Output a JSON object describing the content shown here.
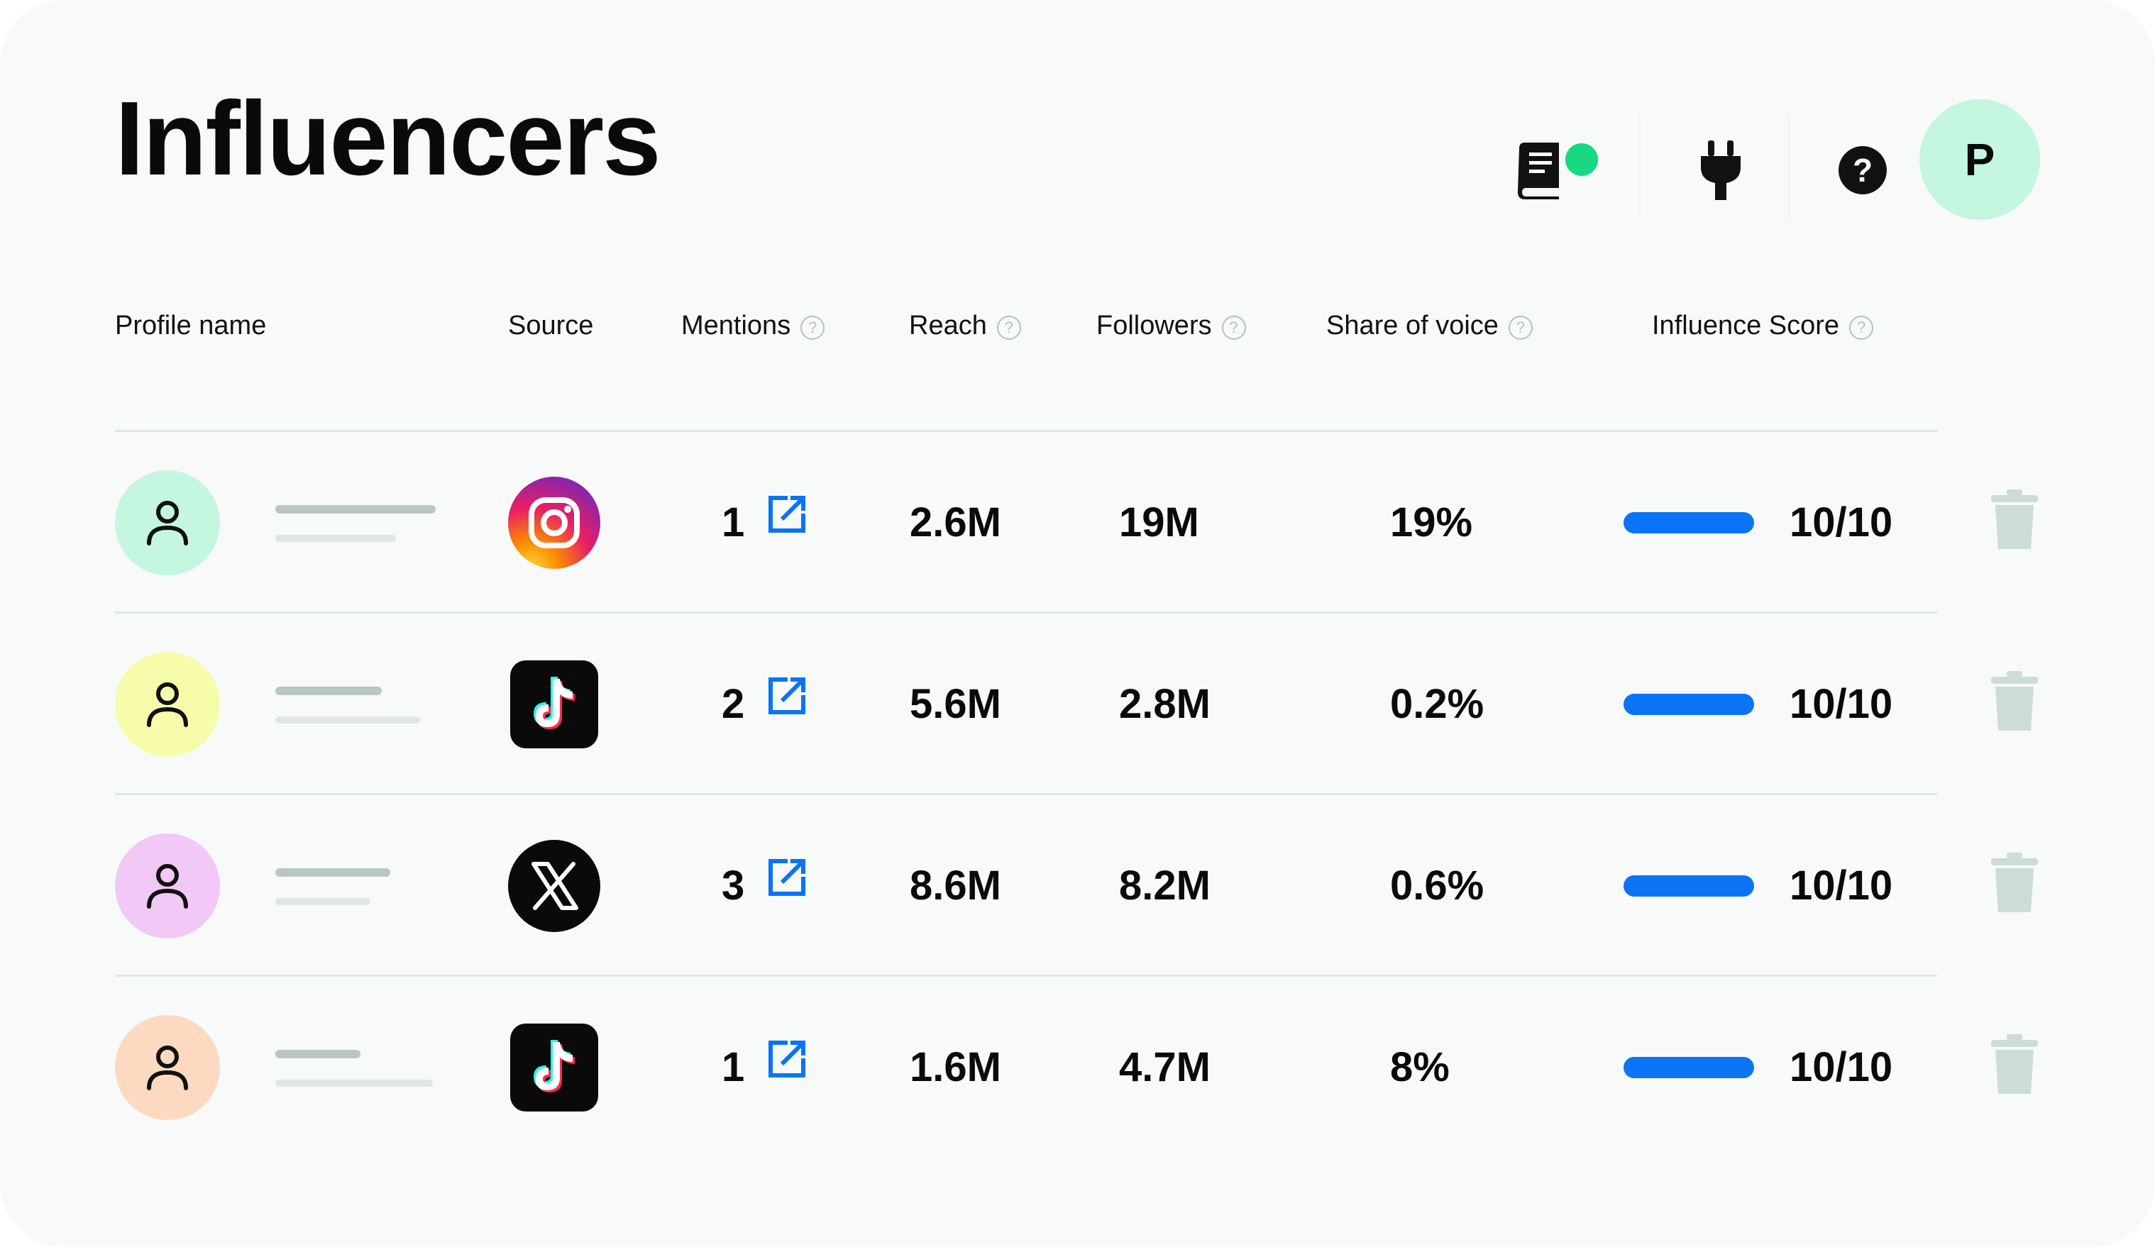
{
  "page": {
    "title": "Influencers"
  },
  "header_actions": {
    "avatar_initial": "P",
    "icons": [
      "book-icon",
      "plug-icon",
      "help-circle-icon"
    ],
    "notification_color": "#16d982"
  },
  "table": {
    "columns": [
      {
        "label": "Profile name",
        "help": false
      },
      {
        "label": "Source",
        "help": false
      },
      {
        "label": "Mentions",
        "help": true
      },
      {
        "label": "Reach",
        "help": true
      },
      {
        "label": "Followers",
        "help": true
      },
      {
        "label": "Share of voice",
        "help": true
      },
      {
        "label": "Influence Score",
        "help": true
      }
    ],
    "help_glyph": "?",
    "rows": [
      {
        "avatar_color": "#c4f6e0",
        "source": "instagram",
        "mentions": "1",
        "reach": "2.6M",
        "followers": "19M",
        "share_of_voice": "19%",
        "influence_score": "10/10",
        "score_fraction": 1.0
      },
      {
        "avatar_color": "#f7fcab",
        "source": "tiktok",
        "mentions": "2",
        "reach": "5.6M",
        "followers": "2.8M",
        "share_of_voice": "0.2%",
        "influence_score": "10/10",
        "score_fraction": 1.0
      },
      {
        "avatar_color": "#f2c8f7",
        "source": "x",
        "mentions": "3",
        "reach": "8.6M",
        "followers": "8.2M",
        "share_of_voice": "0.6%",
        "influence_score": "10/10",
        "score_fraction": 1.0
      },
      {
        "avatar_color": "#fcd9c0",
        "source": "tiktok",
        "mentions": "1",
        "reach": "1.6M",
        "followers": "4.7M",
        "share_of_voice": "8%",
        "influence_score": "10/10",
        "score_fraction": 1.0
      }
    ]
  },
  "colors": {
    "accent_blue": "#0a74f5",
    "trash": "#ccdcd6",
    "card_bg": "#f7faf9"
  }
}
